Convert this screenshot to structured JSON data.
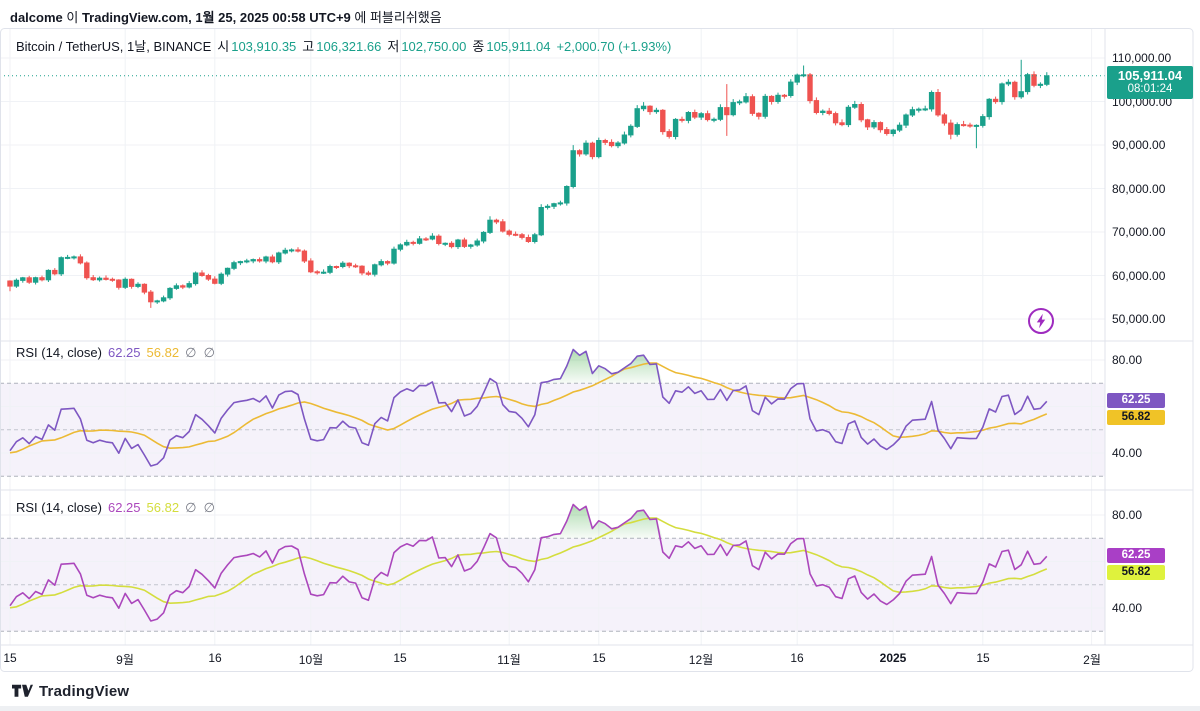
{
  "header": {
    "parts": [
      {
        "t": "dalcome",
        "b": true
      },
      {
        "t": " 이 ",
        "b": false
      },
      {
        "t": "TradingView.com, 1월 25, 2025 00:58 UTC+9",
        "b": true
      },
      {
        "t": " 에 퍼블리쉬했음",
        "b": false
      }
    ]
  },
  "main_legend": {
    "symbol": "Bitcoin / TetherUS, 1날, BINANCE",
    "o_label": "시",
    "o": "103,910.35",
    "h_label": "고",
    "h": "106,321.66",
    "l_label": "저",
    "l": "102,750.00",
    "c_label": "종",
    "c": "105,911.04",
    "change": "+2,000.70 (+1.93%)"
  },
  "price_badge": {
    "price": "105,911.04",
    "countdown": "08:01:24"
  },
  "price_axis": {
    "labels": [
      "110,000.00",
      "100,000.00",
      "90,000.00",
      "80,000.00",
      "70,000.00",
      "60,000.00",
      "50,000.00"
    ],
    "values": [
      110,
      100,
      90,
      80,
      70,
      60,
      50
    ]
  },
  "rsi_axis": {
    "labels": [
      "80.00",
      "40.00"
    ],
    "values": [
      80,
      40
    ]
  },
  "rsi1": {
    "legend": {
      "name": "RSI (14, close)",
      "v1": "62.25",
      "v2": "56.82",
      "hidden": "∅  ∅"
    },
    "badges": [
      {
        "text": "62.25",
        "value": 62.25,
        "bg": "#7e57c2",
        "fg": "#ffffff"
      },
      {
        "text": "56.82",
        "value": 56.82,
        "bg": "#f0c327",
        "fg": "#131722"
      }
    ],
    "line_color": "#7e57c2",
    "ma_color": "#ecba35"
  },
  "rsi2": {
    "legend": {
      "name": "RSI (14, close)",
      "v1": "62.25",
      "v2": "56.82",
      "hidden": "∅  ∅"
    },
    "badges": [
      {
        "text": "62.25",
        "value": 62.25,
        "bg": "#a93fc6",
        "fg": "#ffffff"
      },
      {
        "text": "56.82",
        "value": 56.82,
        "bg": "#dff23d",
        "fg": "#131722"
      }
    ],
    "line_color": "#ab47bc",
    "ma_color": "#d4dd3e"
  },
  "time_axis": {
    "labels": [
      {
        "day": 0,
        "text": "15",
        "bold": false
      },
      {
        "day": 18,
        "text": "9월",
        "bold": false
      },
      {
        "day": 32,
        "text": "16",
        "bold": false
      },
      {
        "day": 47,
        "text": "10월",
        "bold": false
      },
      {
        "day": 61,
        "text": "15",
        "bold": false
      },
      {
        "day": 78,
        "text": "11월",
        "bold": false
      },
      {
        "day": 92,
        "text": "15",
        "bold": false
      },
      {
        "day": 108,
        "text": "12월",
        "bold": false
      },
      {
        "day": 123,
        "text": "16",
        "bold": false
      },
      {
        "day": 138,
        "text": "2025",
        "bold": true
      },
      {
        "day": 152,
        "text": "15",
        "bold": false
      },
      {
        "day": 169,
        "text": "2월",
        "bold": false
      }
    ]
  },
  "logo": {
    "text": "TradingView"
  },
  "colors": {
    "up": "#1aa08b",
    "down": "#ef5350",
    "price_line": "#1aa08b",
    "band": "rgba(126,87,194,0.08)",
    "overbought_fill": "#4caf50",
    "grid": "#f0f2f6",
    "border": "#e0e3eb",
    "dashed": "#9096a1",
    "dashed_mid": "#b6bac4"
  },
  "chart_data": {
    "type": "candlestick",
    "title": "Bitcoin / TetherUS daily with current price 105,911.04 (+2,000.70 / +1.93%)",
    "start_date": "2024-08-15",
    "interval": "1D",
    "last_price": 105911.04,
    "ylim": [
      47000,
      112000
    ],
    "units": "thousands_usd",
    "pre_closes_k": [
      64.84,
      65.09,
      63.93,
      64.02,
      66.69,
      67.14,
      66.01,
      65.84,
      65.38,
      67.32,
      67.91,
      67.91,
      68.26,
      66.82,
      66.2,
      64.62,
      65.36,
      61.5,
      58.12,
      53.99,
      56.03,
      55.13,
      61.71,
      60.88,
      60.59,
      58.72,
      58.84,
      59.35,
      60.61,
      58.74
    ],
    "closes_k": [
      57.56,
      58.89,
      59.48,
      58.46,
      59.49,
      59.01,
      61.17,
      60.38,
      64.09,
      64.17,
      64.27,
      62.88,
      59.5,
      59.03,
      59.39,
      59.12,
      58.97,
      57.3,
      59.13,
      57.49,
      57.97,
      56.18,
      53.95,
      54.16,
      54.87,
      57.04,
      57.64,
      57.34,
      58.13,
      60.57,
      60.0,
      59.18,
      58.22,
      60.31,
      61.65,
      62.94,
      63.19,
      63.35,
      63.65,
      63.34,
      64.26,
      63.15,
      65.17,
      65.79,
      65.88,
      65.6,
      63.33,
      60.84,
      60.63,
      60.75,
      62.08,
      62.06,
      62.82,
      62.24,
      62.13,
      60.58,
      60.28,
      62.45,
      63.19,
      62.85,
      66.05,
      67.04,
      67.61,
      67.4,
      68.42,
      68.39,
      69.03,
      67.35,
      67.41,
      66.65,
      68.17,
      66.71,
      67.01,
      67.93,
      69.91,
      72.72,
      72.34,
      70.21,
      69.48,
      69.37,
      68.74,
      67.81,
      69.36,
      75.64,
      75.9,
      76.5,
      76.68,
      80.47,
      88.7,
      87.96,
      90.41,
      87.33,
      91.03,
      90.59,
      89.85,
      90.47,
      92.31,
      94.29,
      98.35,
      98.93,
      97.69,
      97.98,
      93.08,
      91.97,
      95.89,
      95.65,
      97.46,
      96.41,
      97.19,
      95.84,
      95.9,
      98.59,
      96.96,
      99.74,
      99.92,
      101.11,
      97.28,
      96.59,
      101.17,
      100.0,
      101.42,
      101.37,
      104.46,
      106.06,
      106.14,
      100.2,
      97.47,
      97.76,
      97.22,
      95.1,
      94.69,
      98.67,
      99.3,
      95.79,
      94.16,
      95.16,
      93.53,
      92.64,
      93.43,
      94.56,
      96.89,
      98.11,
      98.22,
      98.31,
      102.08,
      96.92,
      95.04,
      92.48,
      94.7,
      94.57,
      94.49,
      94.51,
      96.53,
      100.5,
      99.98,
      104.04,
      104.41,
      101.09,
      102.26,
      106.15,
      103.71,
      103.96,
      105.91
    ],
    "wick_overrides": [
      {
        "i": 0,
        "low": 56.4
      },
      {
        "i": 22,
        "low": 52.55
      },
      {
        "i": 75,
        "high": 73.62
      },
      {
        "i": 88,
        "high": 89.98
      },
      {
        "i": 99,
        "high": 99.86
      },
      {
        "i": 112,
        "high": 104.0,
        "low": 92.1
      },
      {
        "i": 124,
        "high": 108.27
      },
      {
        "i": 147,
        "low": 91.32
      },
      {
        "i": 151,
        "low": 89.26
      },
      {
        "i": 158,
        "high": 109.59
      }
    ],
    "rsi_length": 14,
    "rsi_ma_length": 14,
    "levels": {
      "overbought": 70,
      "middle": 50,
      "oversold": 30
    },
    "rsi_last": 62.25,
    "rsi_ma_last": 56.82
  }
}
